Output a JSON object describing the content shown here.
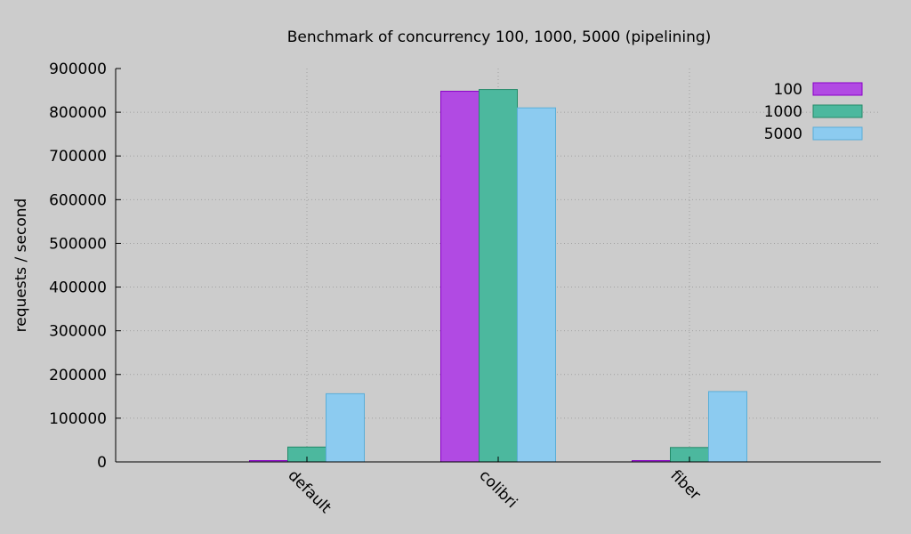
{
  "chart_data": {
    "type": "bar",
    "title": "Benchmark of concurrency 100, 1000, 5000 (pipelining)",
    "xlabel": "",
    "ylabel": "requests / second",
    "ylim": [
      0,
      900000
    ],
    "yticks": [
      0,
      100000,
      200000,
      300000,
      400000,
      500000,
      600000,
      700000,
      800000,
      900000
    ],
    "ytick_labels": [
      "0",
      "100000",
      "200000",
      "300000",
      "400000",
      "500000",
      "600000",
      "700000",
      "800000",
      "900000"
    ],
    "categories": [
      "default",
      "colibri",
      "fiber"
    ],
    "grid": true,
    "legend_position": "top-right",
    "series": [
      {
        "name": "100",
        "color": "#b14ae3",
        "stroke": "#8a00c8",
        "values": [
          3000,
          848000,
          3000
        ]
      },
      {
        "name": "1000",
        "color": "#4cb89e",
        "stroke": "#238a68",
        "values": [
          34000,
          852000,
          33000
        ]
      },
      {
        "name": "5000",
        "color": "#8ccbf0",
        "stroke": "#5aaed8",
        "values": [
          156000,
          810000,
          161000
        ]
      }
    ]
  }
}
